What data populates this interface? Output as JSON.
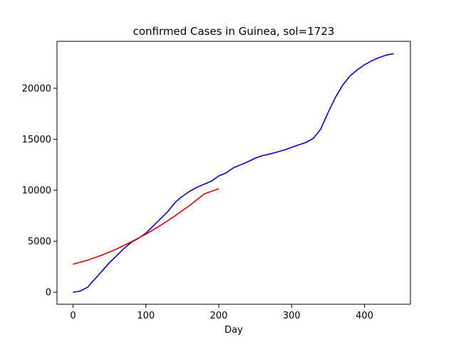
{
  "chart_data": {
    "type": "line",
    "title": "confirmed Cases in Guinea, sol=1723",
    "xlabel": "Day",
    "ylabel": "",
    "xlim": [
      -22,
      463
    ],
    "ylim": [
      -1170,
      24600
    ],
    "x_ticks": [
      0,
      100,
      200,
      300,
      400
    ],
    "y_ticks": [
      0,
      5000,
      10000,
      15000,
      20000
    ],
    "grid": false,
    "series": [
      {
        "color": "#0000cc",
        "points": [
          [
            0,
            0
          ],
          [
            10,
            120
          ],
          [
            20,
            500
          ],
          [
            30,
            1300
          ],
          [
            40,
            2100
          ],
          [
            50,
            2900
          ],
          [
            60,
            3600
          ],
          [
            70,
            4300
          ],
          [
            80,
            4900
          ],
          [
            90,
            5300
          ],
          [
            100,
            5800
          ],
          [
            110,
            6500
          ],
          [
            120,
            7200
          ],
          [
            130,
            7900
          ],
          [
            140,
            8800
          ],
          [
            150,
            9400
          ],
          [
            160,
            9900
          ],
          [
            170,
            10300
          ],
          [
            180,
            10600
          ],
          [
            190,
            10900
          ],
          [
            200,
            11400
          ],
          [
            210,
            11700
          ],
          [
            220,
            12200
          ],
          [
            230,
            12500
          ],
          [
            240,
            12800
          ],
          [
            250,
            13150
          ],
          [
            260,
            13400
          ],
          [
            270,
            13550
          ],
          [
            280,
            13750
          ],
          [
            290,
            13950
          ],
          [
            300,
            14200
          ],
          [
            310,
            14450
          ],
          [
            320,
            14700
          ],
          [
            330,
            15100
          ],
          [
            340,
            16000
          ],
          [
            350,
            17600
          ],
          [
            360,
            19100
          ],
          [
            370,
            20300
          ],
          [
            380,
            21200
          ],
          [
            390,
            21800
          ],
          [
            400,
            22300
          ],
          [
            410,
            22700
          ],
          [
            420,
            23000
          ],
          [
            430,
            23250
          ],
          [
            440,
            23400
          ]
        ]
      },
      {
        "color": "#dd0000",
        "points": [
          [
            0,
            2750
          ],
          [
            20,
            3150
          ],
          [
            40,
            3650
          ],
          [
            60,
            4250
          ],
          [
            80,
            4950
          ],
          [
            100,
            5700
          ],
          [
            120,
            6550
          ],
          [
            140,
            7500
          ],
          [
            160,
            8500
          ],
          [
            180,
            9650
          ],
          [
            200,
            10150
          ]
        ]
      }
    ]
  }
}
